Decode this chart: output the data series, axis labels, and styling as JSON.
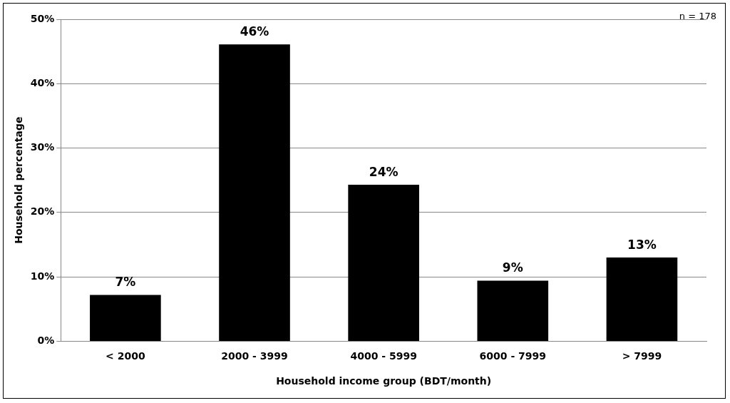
{
  "chart_data": {
    "type": "bar",
    "categories": [
      "< 2000",
      "2000 - 3999",
      "4000 - 5999",
      "6000 - 7999",
      "> 7999"
    ],
    "values": [
      7.2,
      46.1,
      24.3,
      9.4,
      13.0
    ],
    "value_labels": [
      "7%",
      "46%",
      "24%",
      "9%",
      "13%"
    ],
    "color": "#000000",
    "xlabel": "Household income group (BDT/month)",
    "ylabel": "Household percentage",
    "ylim": [
      0,
      50
    ],
    "yticks": [
      {
        "value": 0,
        "label": "0%"
      },
      {
        "value": 10,
        "label": "10%"
      },
      {
        "value": 20,
        "label": "20%"
      },
      {
        "value": 30,
        "label": "30%"
      },
      {
        "value": 40,
        "label": "40%"
      },
      {
        "value": 50,
        "label": "50%"
      }
    ],
    "grid": "y",
    "legend": false,
    "annotations": [
      "n = 178"
    ]
  }
}
